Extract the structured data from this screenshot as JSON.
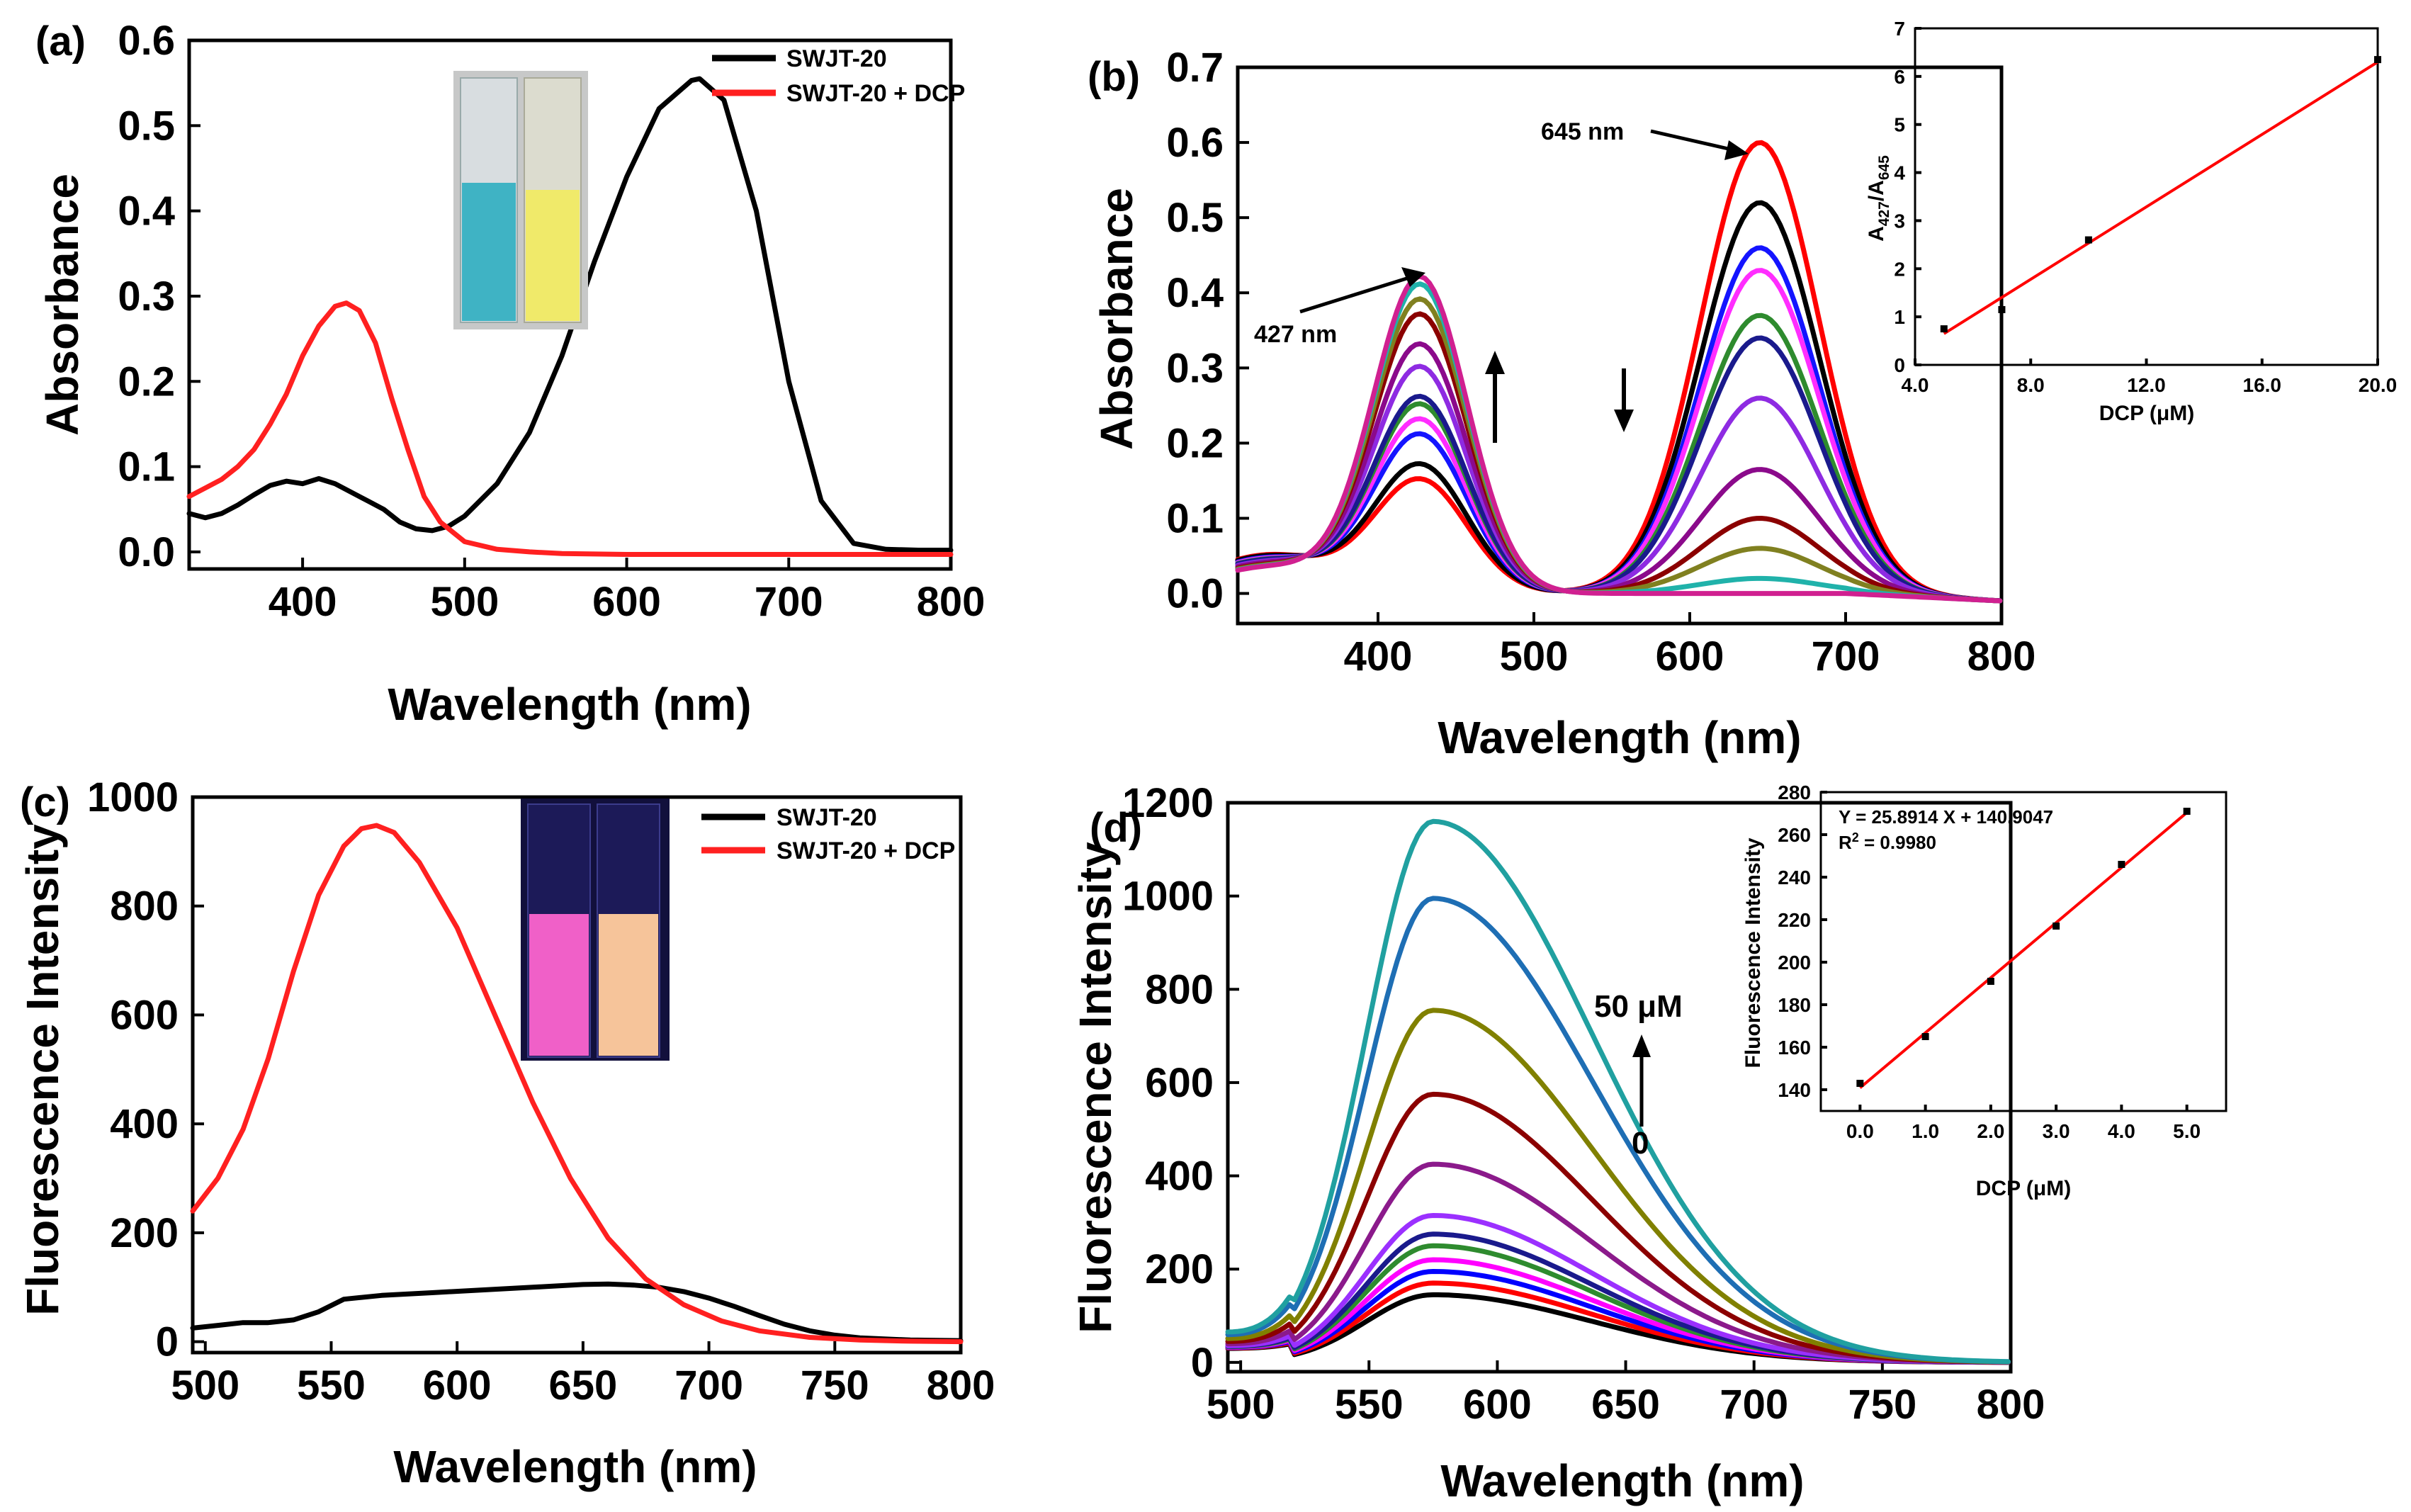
{
  "figure": {
    "panels": {
      "a": {
        "label": "(a)",
        "inset_photo": {
          "description_icon": "cuvette-photo",
          "colors": [
            "#3fb3c4",
            "#f0ea6a"
          ]
        }
      },
      "b": {
        "label": "(b)",
        "annotations": {
          "peak1": "427 nm",
          "peak2": "645 nm"
        }
      },
      "c": {
        "label": "(c)",
        "inset_photo": {
          "description_icon": "cuvette-uv-photo",
          "colors": [
            "#f060c8",
            "#f6c49a"
          ]
        }
      },
      "d": {
        "label": "(d)",
        "annotations": {
          "top": "50 μM",
          "bottom": "0"
        }
      }
    }
  },
  "chart_data": [
    {
      "id": "a",
      "type": "line",
      "title": "",
      "xlabel": "Wavelength (nm)",
      "ylabel": "Absorbance",
      "xlim": [
        330,
        800
      ],
      "ylim": [
        -0.02,
        0.6
      ],
      "xticks": [
        400,
        500,
        600,
        700,
        800
      ],
      "yticks": [
        0.0,
        0.1,
        0.2,
        0.3,
        0.4,
        0.5,
        0.6
      ],
      "ytick_labels": [
        "0.0",
        "0.1",
        "0.2",
        "0.3",
        "0.4",
        "0.5",
        "0.6"
      ],
      "legend": "top-right",
      "series": [
        {
          "name": "SWJT-20",
          "color": "#000000",
          "x": [
            330,
            340,
            350,
            360,
            370,
            380,
            390,
            400,
            410,
            420,
            430,
            440,
            450,
            460,
            470,
            480,
            490,
            500,
            520,
            540,
            560,
            580,
            600,
            620,
            640,
            645,
            660,
            680,
            700,
            720,
            740,
            760,
            780,
            800
          ],
          "y": [
            0.045,
            0.04,
            0.045,
            0.055,
            0.067,
            0.078,
            0.083,
            0.08,
            0.086,
            0.08,
            0.07,
            0.06,
            0.05,
            0.035,
            0.027,
            0.025,
            0.03,
            0.042,
            0.08,
            0.14,
            0.23,
            0.34,
            0.44,
            0.52,
            0.553,
            0.555,
            0.53,
            0.4,
            0.2,
            0.06,
            0.01,
            0.003,
            0.002,
            0.002
          ]
        },
        {
          "name": "SWJT-20 + DCP",
          "color": "#ff2020",
          "x": [
            330,
            340,
            350,
            360,
            370,
            380,
            390,
            400,
            410,
            420,
            427,
            435,
            445,
            455,
            465,
            475,
            485,
            500,
            520,
            540,
            560,
            600,
            700,
            800
          ],
          "y": [
            0.065,
            0.075,
            0.085,
            0.1,
            0.12,
            0.15,
            0.185,
            0.23,
            0.265,
            0.288,
            0.292,
            0.283,
            0.245,
            0.18,
            0.12,
            0.065,
            0.035,
            0.012,
            0.003,
            0.0,
            -0.002,
            -0.003,
            -0.003,
            -0.003
          ]
        }
      ]
    },
    {
      "id": "b",
      "type": "line",
      "title": "",
      "xlabel": "Wavelength (nm)",
      "ylabel": "Absorbance",
      "xlim": [
        310,
        800
      ],
      "ylim": [
        -0.04,
        0.7
      ],
      "xticks": [
        400,
        500,
        600,
        700,
        800
      ],
      "yticks": [
        0.0,
        0.1,
        0.2,
        0.3,
        0.4,
        0.5,
        0.6,
        0.7
      ],
      "ytick_labels": [
        "0.0",
        "0.1",
        "0.2",
        "0.3",
        "0.4",
        "0.5",
        "0.6",
        "0.7"
      ],
      "model": "gaussian-sum",
      "series": [
        {
          "color": "#ff0000",
          "peak427": 0.15,
          "peak645": 0.6
        },
        {
          "color": "#000000",
          "peak427": 0.17,
          "peak645": 0.52
        },
        {
          "color": "#1414ff",
          "peak427": 0.21,
          "peak645": 0.46
        },
        {
          "color": "#ff2dff",
          "peak427": 0.23,
          "peak645": 0.43
        },
        {
          "color": "#2e8b2e",
          "peak427": 0.25,
          "peak645": 0.37
        },
        {
          "color": "#1a1a8c",
          "peak427": 0.26,
          "peak645": 0.34
        },
        {
          "color": "#8e2be2",
          "peak427": 0.3,
          "peak645": 0.26
        },
        {
          "color": "#8b0a8b",
          "peak427": 0.33,
          "peak645": 0.165
        },
        {
          "color": "#8b0000",
          "peak427": 0.37,
          "peak645": 0.1
        },
        {
          "color": "#808020",
          "peak427": 0.39,
          "peak645": 0.06
        },
        {
          "color": "#20b2aa",
          "peak427": 0.41,
          "peak645": 0.02
        },
        {
          "color": "#d02090",
          "peak427": 0.42,
          "peak645": 0.0
        }
      ]
    },
    {
      "id": "b-inset",
      "type": "scatter",
      "title": "",
      "xlabel": "DCP (μM)",
      "ylabel_main": "A",
      "ylabel_sub1": "427",
      "ylabel_mid": "/A",
      "ylabel_sub2": "645",
      "xlim": [
        4,
        20
      ],
      "ylim": [
        0,
        7
      ],
      "xticks": [
        4,
        8,
        12,
        16,
        20
      ],
      "xtick_labels": [
        "4.0",
        "8.0",
        "12.0",
        "16.0",
        "20.0"
      ],
      "yticks": [
        0,
        1,
        2,
        3,
        4,
        5,
        6,
        7
      ],
      "ytick_labels": [
        "0",
        "1",
        "2",
        "3",
        "4",
        "5",
        "6",
        "7"
      ],
      "points": {
        "x": [
          5,
          7,
          10,
          20
        ],
        "y": [
          0.75,
          1.15,
          2.6,
          6.35
        ]
      },
      "fit": {
        "x": [
          5,
          20
        ],
        "y": [
          0.65,
          6.3
        ],
        "color": "#ff0000"
      }
    },
    {
      "id": "c",
      "type": "line",
      "title": "",
      "xlabel": "Wavelength (nm)",
      "ylabel": "Fluorescence Intensity",
      "xlim": [
        495,
        800
      ],
      "ylim": [
        -20,
        1000
      ],
      "xticks": [
        500,
        550,
        600,
        650,
        700,
        750,
        800
      ],
      "yticks": [
        0,
        200,
        400,
        600,
        800,
        1000
      ],
      "ytick_labels": [
        "0",
        "200",
        "400",
        "600",
        "800",
        "1000"
      ],
      "legend": "top-right",
      "series": [
        {
          "name": "SWJT-20",
          "color": "#000000",
          "x": [
            495,
            505,
            515,
            525,
            535,
            545,
            555,
            570,
            590,
            610,
            630,
            650,
            660,
            670,
            680,
            690,
            700,
            710,
            720,
            730,
            740,
            750,
            760,
            780,
            800
          ],
          "y": [
            25,
            30,
            35,
            35,
            40,
            55,
            78,
            85,
            90,
            95,
            100,
            105,
            106,
            104,
            100,
            92,
            80,
            65,
            48,
            32,
            20,
            12,
            7,
            3,
            2
          ]
        },
        {
          "name": "SWJT-20 + DCP",
          "color": "#ff2020",
          "x": [
            495,
            505,
            515,
            525,
            535,
            545,
            555,
            562,
            568,
            575,
            585,
            600,
            615,
            630,
            645,
            660,
            675,
            690,
            705,
            720,
            740,
            760,
            780,
            800
          ],
          "y": [
            240,
            300,
            390,
            520,
            680,
            820,
            910,
            942,
            948,
            935,
            880,
            760,
            600,
            440,
            300,
            190,
            115,
            68,
            38,
            20,
            8,
            3,
            1,
            0
          ]
        }
      ]
    },
    {
      "id": "d",
      "type": "line",
      "title": "",
      "xlabel": "Wavelength (nm)",
      "ylabel": "Fluorescence Intensity",
      "xlim": [
        495,
        800
      ],
      "ylim": [
        -20,
        1200
      ],
      "xticks": [
        500,
        550,
        600,
        650,
        700,
        750,
        800
      ],
      "yticks": [
        0,
        200,
        400,
        600,
        800,
        1000,
        1200
      ],
      "ytick_labels": [
        "0",
        "200",
        "400",
        "600",
        "800",
        "1000",
        "1200"
      ],
      "model": "asymmetric-peak",
      "series": [
        {
          "color": "#000000",
          "peak": 145
        },
        {
          "color": "#ff0000",
          "peak": 170
        },
        {
          "color": "#0000ff",
          "peak": 195
        },
        {
          "color": "#ff00ff",
          "peak": 220
        },
        {
          "color": "#2e8b2e",
          "peak": 250
        },
        {
          "color": "#1a1a8c",
          "peak": 275
        },
        {
          "color": "#9b30ff",
          "peak": 315
        },
        {
          "color": "#8b1a8b",
          "peak": 425
        },
        {
          "color": "#8b0000",
          "peak": 575
        },
        {
          "color": "#808000",
          "peak": 755
        },
        {
          "color": "#1e6eb4",
          "peak": 995
        },
        {
          "color": "#20a0a0",
          "peak": 1160
        }
      ]
    },
    {
      "id": "d-inset",
      "type": "scatter",
      "title": "",
      "xlabel": "DCP (μM)",
      "ylabel": "Fluorescence Intensity",
      "equation": "Y = 25.8914 X + 140.9047",
      "r2_label": "R",
      "r2_sup": "2",
      "r2_value": " = 0.9980",
      "xlim": [
        -0.6,
        5.6
      ],
      "ylim": [
        130,
        280
      ],
      "xticks": [
        0,
        1,
        2,
        3,
        4,
        5
      ],
      "xtick_labels": [
        "0.0",
        "1.0",
        "2.0",
        "3.0",
        "4.0",
        "5.0"
      ],
      "yticks": [
        140,
        160,
        180,
        200,
        220,
        240,
        260,
        280
      ],
      "ytick_labels": [
        "140",
        "160",
        "180",
        "200",
        "220",
        "240",
        "260",
        "280"
      ],
      "points": {
        "x": [
          0,
          1,
          2,
          3,
          4,
          5
        ],
        "y": [
          143,
          165,
          191,
          217,
          246,
          271
        ]
      },
      "fit": {
        "x": [
          0,
          5
        ],
        "y": [
          140.9,
          270.4
        ],
        "color": "#ff0000"
      }
    }
  ]
}
